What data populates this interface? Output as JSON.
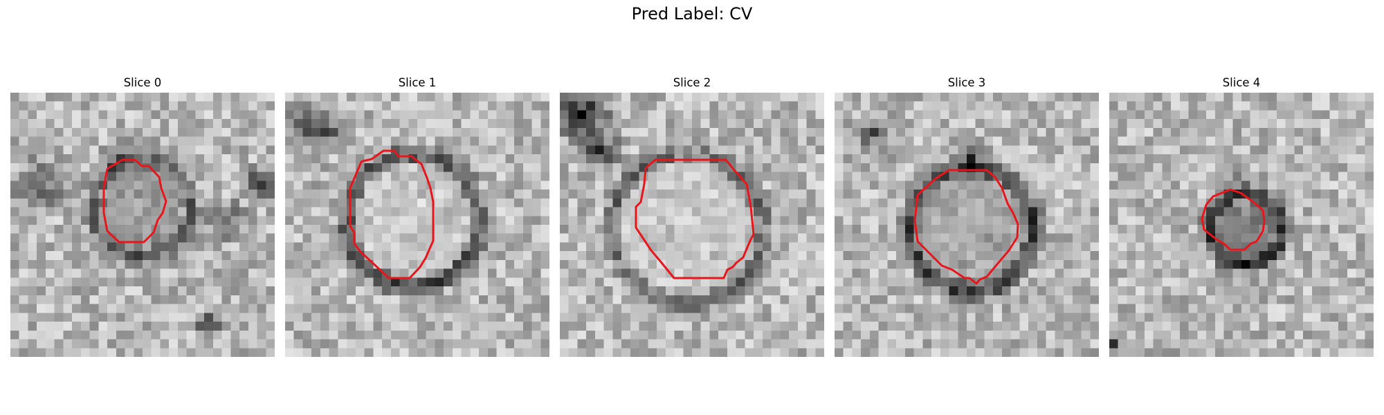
{
  "figure": {
    "title": "Pred Label: CV",
    "contour_color": "#e8161b"
  },
  "slices": [
    {
      "label": "Slice 0"
    },
    {
      "label": "Slice 1"
    },
    {
      "label": "Slice 2"
    },
    {
      "label": "Slice 3"
    },
    {
      "label": "Slice 4"
    }
  ]
}
